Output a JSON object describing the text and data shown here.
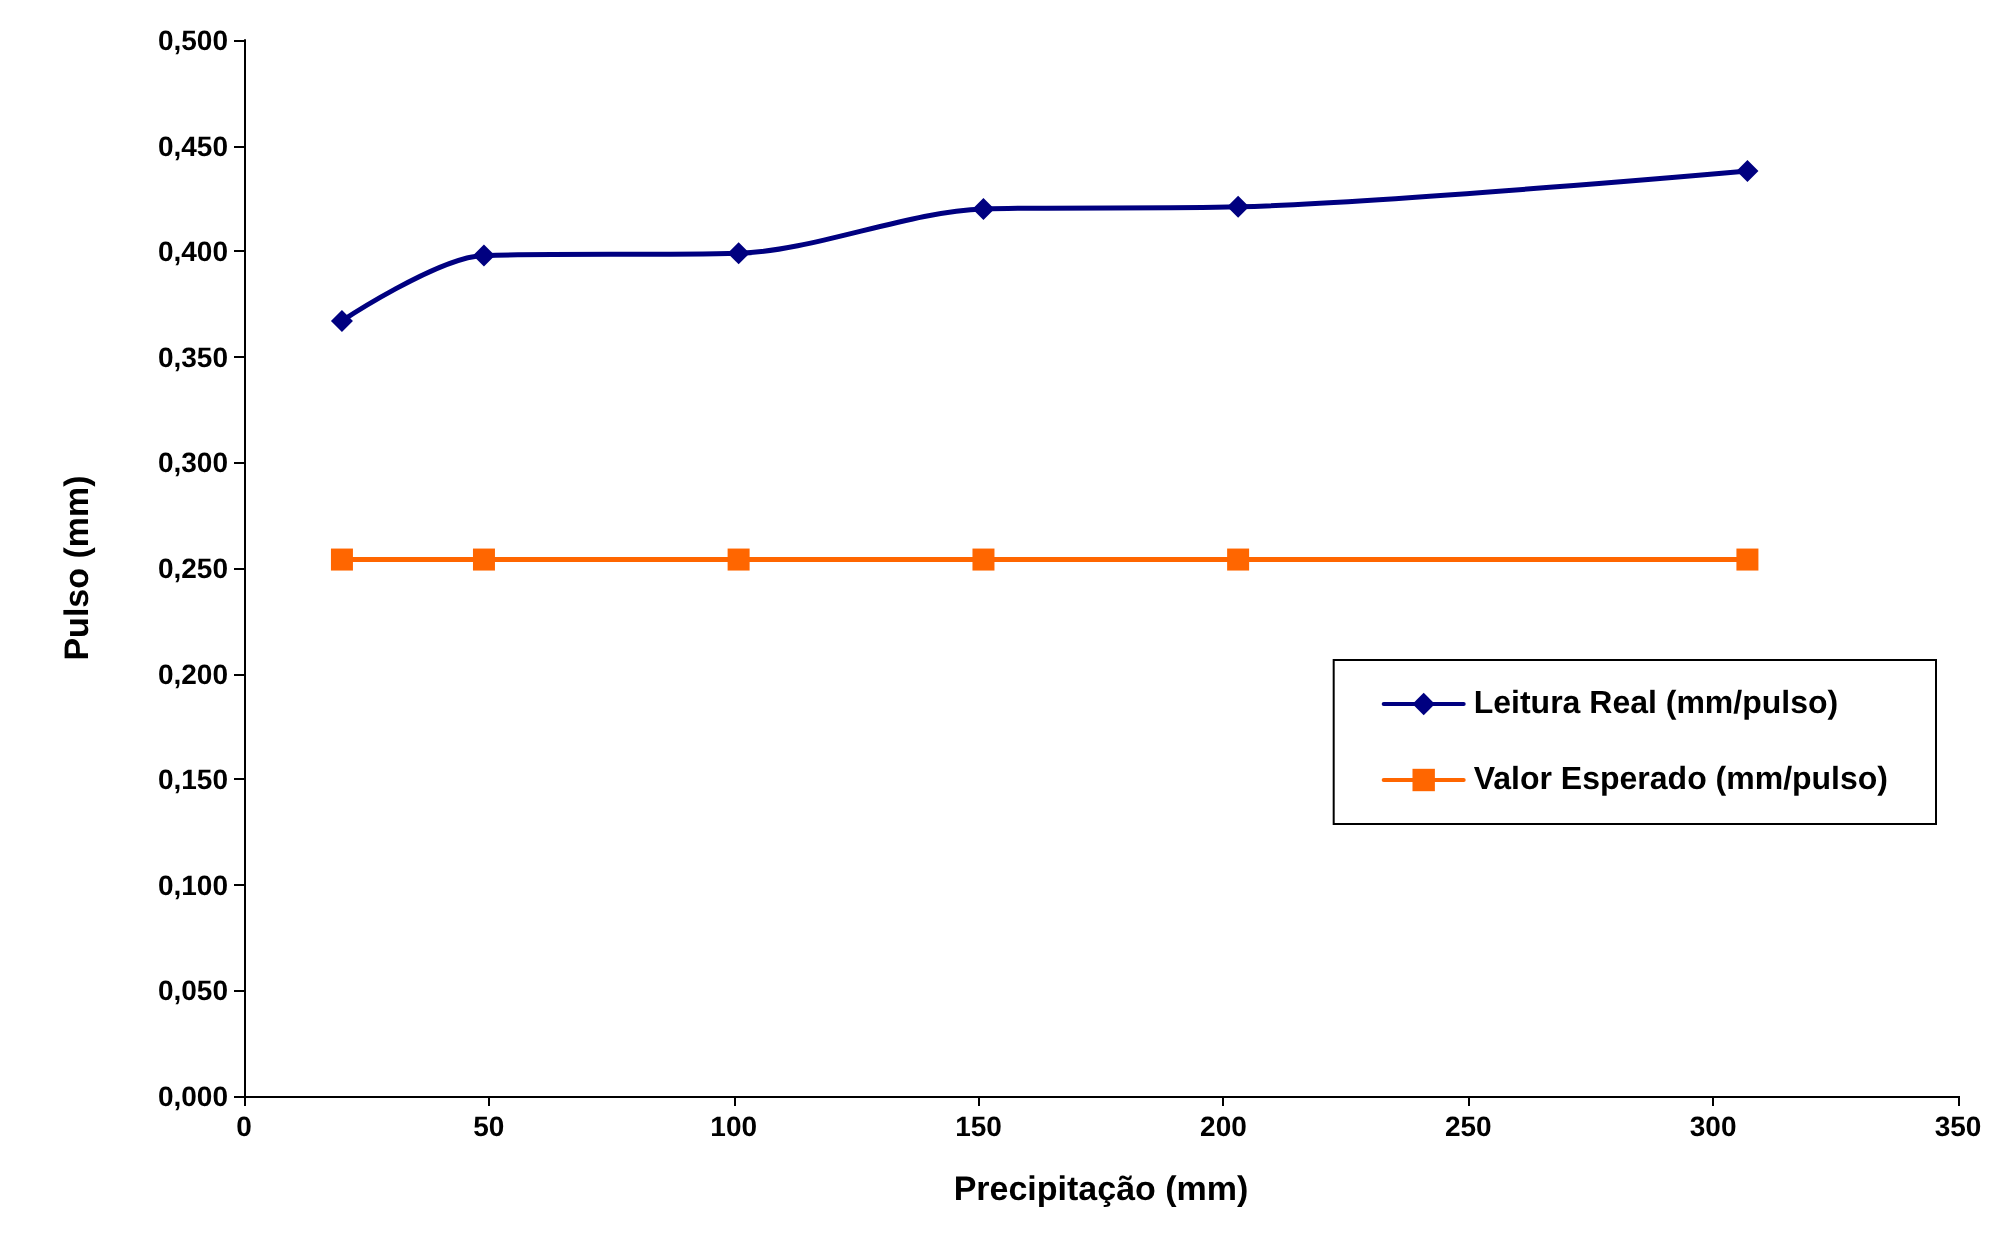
{
  "chart_data": {
    "type": "line",
    "xlabel": "Precipitação (mm)",
    "ylabel": "Pulso (mm)",
    "series": [
      {
        "name": "Leitura Real (mm/pulso)",
        "color": "#000080",
        "marker": "diamond",
        "x": [
          20,
          49,
          101,
          151,
          203,
          307
        ],
        "values": [
          0.367,
          0.398,
          0.399,
          0.42,
          0.421,
          0.438
        ]
      },
      {
        "name": "Valor Esperado (mm/pulso)",
        "color": "#ff6600",
        "marker": "square",
        "x": [
          20,
          49,
          101,
          151,
          203,
          307
        ],
        "values": [
          0.254,
          0.254,
          0.254,
          0.254,
          0.254,
          0.254
        ]
      }
    ],
    "xlim": [
      0,
      350
    ],
    "xticks": [
      0,
      50,
      100,
      150,
      200,
      250,
      300,
      350
    ],
    "ylim": [
      0,
      0.5
    ],
    "yticks": [
      {
        "value": 0,
        "label": "0,000"
      },
      {
        "value": 0.05,
        "label": "0,050"
      },
      {
        "value": 0.1,
        "label": "0,100"
      },
      {
        "value": 0.15,
        "label": "0,150"
      },
      {
        "value": 0.2,
        "label": "0,200"
      },
      {
        "value": 0.25,
        "label": "0,250"
      },
      {
        "value": 0.3,
        "label": "0,300"
      },
      {
        "value": 0.35,
        "label": "0,350"
      },
      {
        "value": 0.4,
        "label": "0,400"
      },
      {
        "value": 0.45,
        "label": "0,450"
      },
      {
        "value": 0.5,
        "label": "0,500"
      }
    ],
    "grid": false,
    "legend": "right",
    "line_style": "solid"
  }
}
